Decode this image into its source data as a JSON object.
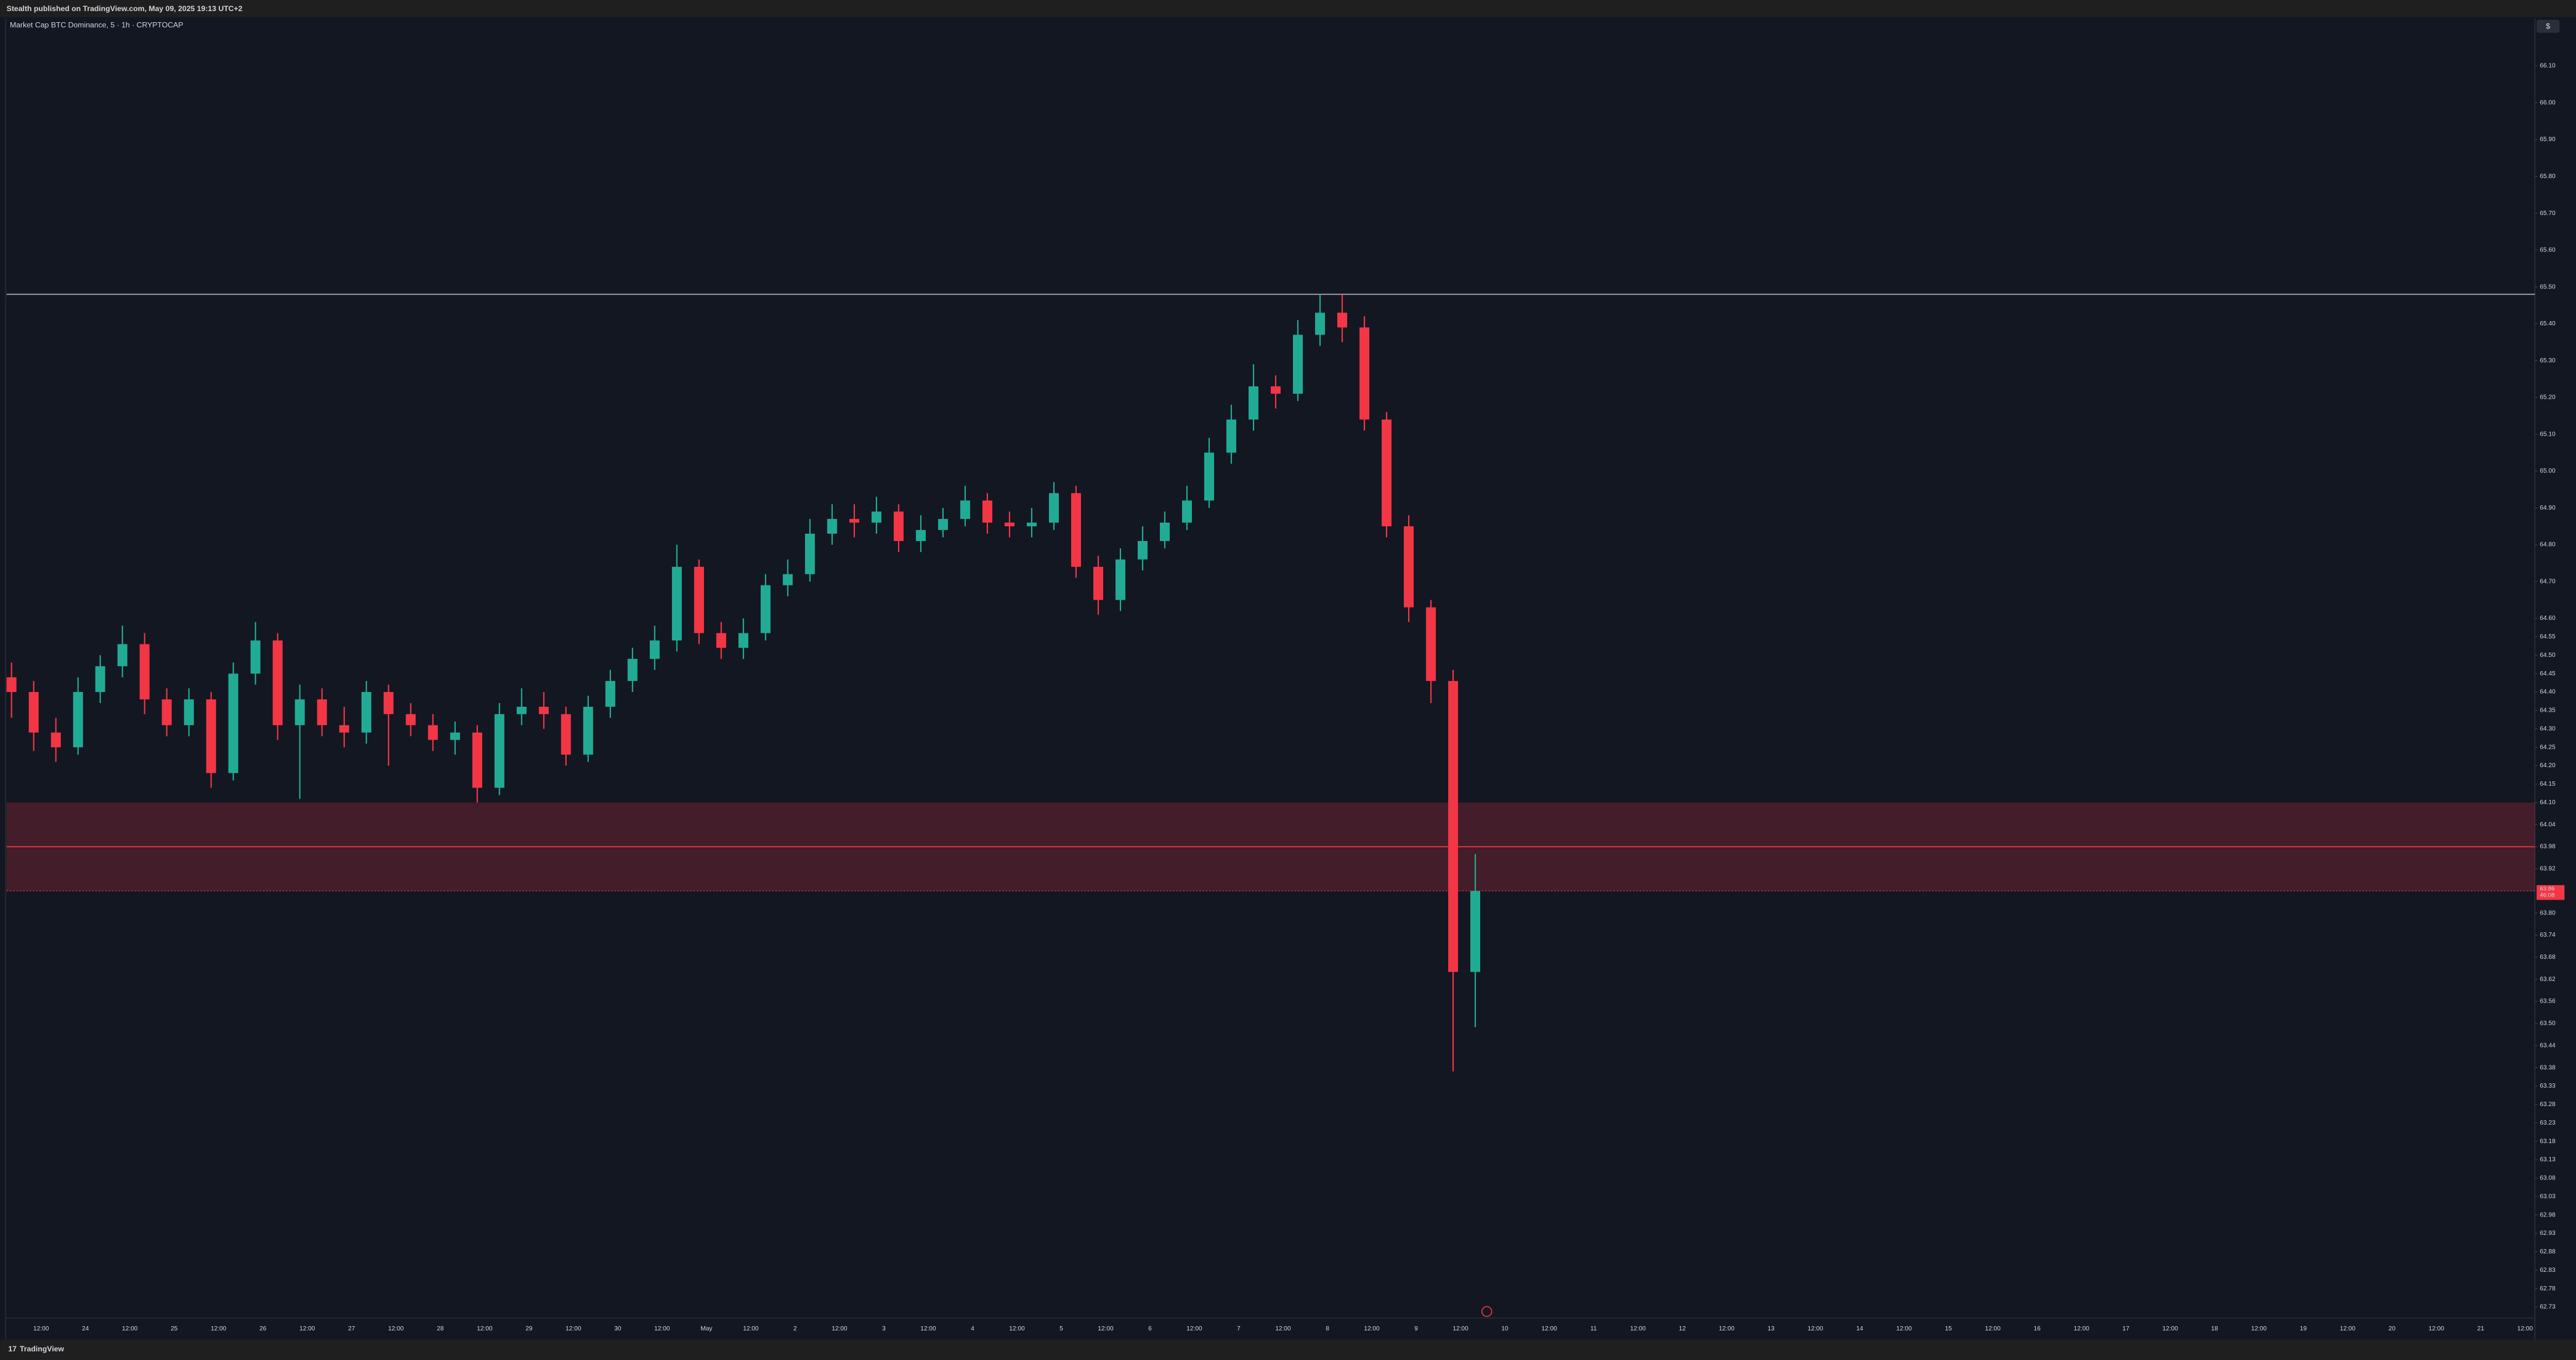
{
  "header": {
    "title": "Stealth published on TradingView.com, May 09, 2025 19:13 UTC+2"
  },
  "footer": {
    "brand": "TradingView"
  },
  "toolbar": {
    "currency_button": "$"
  },
  "chart_data": {
    "type": "candlestick",
    "title": "Market Cap BTC Dominance, 5 · 1h · CRYPTOCAP",
    "up_color": "#22ab94",
    "down_color": "#f23645",
    "open": [
      64.44,
      64.4,
      64.29,
      64.25,
      64.4,
      64.47,
      64.53,
      64.38,
      64.31,
      64.38,
      64.18,
      64.45,
      64.54,
      64.31,
      64.38,
      64.31,
      64.29,
      64.4,
      64.34,
      64.31,
      64.27,
      64.29,
      64.14,
      64.34,
      64.36,
      64.34,
      64.23,
      64.36,
      64.43,
      64.49,
      64.54,
      64.74,
      64.56,
      64.52,
      64.56,
      64.69,
      64.72,
      64.83,
      64.87,
      64.86,
      64.89,
      64.81,
      64.84,
      64.87,
      64.92,
      64.86,
      64.85,
      64.86,
      64.94,
      64.74,
      64.65,
      64.76,
      64.81,
      64.86,
      64.92,
      65.05,
      65.14,
      65.23,
      65.21,
      65.37,
      65.43,
      65.39,
      65.14,
      64.85,
      64.63,
      64.43,
      63.64
    ],
    "high": [
      64.48,
      64.43,
      64.33,
      64.44,
      64.5,
      64.58,
      64.56,
      64.41,
      64.41,
      64.4,
      64.48,
      64.59,
      64.56,
      64.42,
      64.41,
      64.36,
      64.43,
      64.42,
      64.37,
      64.34,
      64.32,
      64.31,
      64.37,
      64.41,
      64.4,
      64.36,
      64.39,
      64.46,
      64.52,
      64.58,
      64.8,
      64.76,
      64.59,
      64.6,
      64.72,
      64.76,
      64.87,
      64.91,
      64.91,
      64.93,
      64.91,
      64.88,
      64.9,
      64.96,
      64.94,
      64.89,
      64.9,
      64.97,
      64.96,
      64.77,
      64.79,
      64.85,
      64.89,
      64.96,
      65.09,
      65.18,
      65.29,
      65.26,
      65.41,
      65.48,
      65.48,
      65.42,
      65.16,
      64.88,
      64.65,
      64.46,
      63.96
    ],
    "low": [
      64.33,
      64.24,
      64.21,
      64.23,
      64.37,
      64.44,
      64.34,
      64.28,
      64.28,
      64.14,
      64.16,
      64.42,
      64.27,
      64.11,
      64.28,
      64.25,
      64.26,
      64.2,
      64.28,
      64.24,
      64.23,
      64.1,
      64.12,
      64.31,
      64.3,
      64.2,
      64.21,
      64.33,
      64.4,
      64.46,
      64.51,
      64.53,
      64.49,
      64.49,
      64.54,
      64.66,
      64.7,
      64.8,
      64.82,
      64.83,
      64.78,
      64.78,
      64.82,
      64.85,
      64.83,
      64.82,
      64.82,
      64.84,
      64.71,
      64.61,
      64.62,
      64.73,
      64.79,
      64.84,
      64.9,
      65.02,
      65.11,
      65.17,
      65.19,
      65.34,
      65.35,
      65.11,
      64.82,
      64.59,
      64.37,
      63.37,
      63.49
    ],
    "close": [
      64.4,
      64.29,
      64.25,
      64.4,
      64.47,
      64.53,
      64.38,
      64.31,
      64.38,
      64.18,
      64.45,
      64.54,
      64.31,
      64.38,
      64.31,
      64.29,
      64.4,
      64.34,
      64.31,
      64.27,
      64.29,
      64.14,
      64.34,
      64.36,
      64.34,
      64.23,
      64.36,
      64.43,
      64.49,
      64.54,
      64.74,
      64.56,
      64.52,
      64.56,
      64.69,
      64.72,
      64.83,
      64.87,
      64.86,
      64.89,
      64.81,
      64.84,
      64.87,
      64.92,
      64.86,
      64.85,
      64.86,
      64.94,
      64.74,
      64.65,
      64.76,
      64.81,
      64.86,
      64.92,
      65.05,
      65.14,
      65.23,
      65.21,
      65.37,
      65.43,
      65.39,
      65.14,
      64.85,
      64.63,
      64.43,
      63.64,
      63.86
    ],
    "ylim": [
      62.7,
      66.23
    ],
    "yticks": [
      {
        "value": 66.1,
        "label": "66.10"
      },
      {
        "value": 66,
        "label": "66.00"
      },
      {
        "value": 65.9,
        "label": "65.90"
      },
      {
        "value": 65.8,
        "label": "65.80"
      },
      {
        "value": 65.7,
        "label": "65.70"
      },
      {
        "value": 65.6,
        "label": "65.60"
      },
      {
        "value": 65.5,
        "label": "65.50"
      },
      {
        "value": 65.4,
        "label": "65.40"
      },
      {
        "value": 65.3,
        "label": "65.30"
      },
      {
        "value": 65.2,
        "label": "65.20"
      },
      {
        "value": 65.1,
        "label": "65.10"
      },
      {
        "value": 65,
        "label": "65.00"
      },
      {
        "value": 64.9,
        "label": "64.90"
      },
      {
        "value": 64.8,
        "label": "64.80"
      },
      {
        "value": 64.7,
        "label": "64.70"
      },
      {
        "value": 64.6,
        "label": "64.60"
      },
      64.55,
      {
        "value": 64.5,
        "label": "64.50"
      },
      64.45,
      {
        "value": 64.4,
        "label": "64.40"
      },
      64.35,
      {
        "value": 64.3,
        "label": "64.30"
      },
      64.25,
      {
        "value": 64.2,
        "label": "64.20"
      },
      64.15,
      {
        "value": 64.1,
        "label": "64.10"
      },
      64.04,
      63.98,
      63.92,
      {
        "value": 63.8,
        "label": "63.80"
      },
      63.74,
      63.68,
      63.62,
      63.56,
      {
        "value": 63.5,
        "label": "63.50"
      },
      63.44,
      63.38,
      63.33,
      63.28,
      63.23,
      63.18,
      63.13,
      63.08,
      63.03,
      62.98,
      62.93,
      62.88,
      62.83,
      62.78,
      62.73
    ],
    "xticks": [
      "12:00",
      "24",
      "12:00",
      "25",
      "12:00",
      "26",
      "12:00",
      "27",
      "12:00",
      "28",
      "12:00",
      "29",
      "12:00",
      "30",
      "12:00",
      "May",
      "12:00",
      "2",
      "12:00",
      "3",
      "12:00",
      "4",
      "12:00",
      "5",
      "12:00",
      "6",
      "12:00",
      "7",
      "12:00",
      "8",
      "12:00",
      "9",
      "12:00",
      "10",
      "12:00",
      "11",
      "12:00",
      "12",
      "12:00",
      "13",
      "12:00",
      "14",
      "12:00",
      "15",
      "12:00",
      "16",
      "12:00",
      "17",
      "12:00",
      "18",
      "12:00",
      "19",
      "12:00",
      "20",
      "12:00",
      "21",
      "12:00"
    ],
    "level": {
      "value": 65.48,
      "color": "#b2b5be"
    },
    "zone": {
      "low": 63.86,
      "high": 64.1,
      "mid": 63.98,
      "color": "#f23645"
    },
    "last_price": 63.86,
    "countdown": "46:08"
  }
}
